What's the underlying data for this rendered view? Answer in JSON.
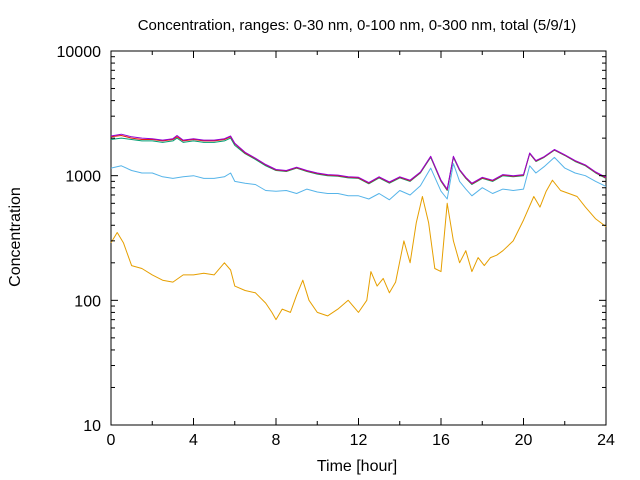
{
  "chart_data": {
    "type": "line",
    "title": "Concentration, ranges: 0-30 nm, 0-100 nm, 0-300 nm, total (5/9/1)",
    "xlabel": "Time [hour]",
    "ylabel": "Concentration",
    "xlim": [
      0,
      24
    ],
    "ylim": [
      10,
      10000
    ],
    "yscale": "log",
    "grid": false,
    "x_ticks": [
      0,
      4,
      8,
      12,
      16,
      20,
      24
    ],
    "x_tick_labels": [
      "0",
      "4",
      "8",
      "12",
      "16",
      "20",
      "24"
    ],
    "y_ticks": [
      10,
      100,
      1000,
      10000
    ],
    "y_tick_labels": [
      "10",
      "100",
      "1000",
      "10000"
    ],
    "series": [
      {
        "color": "#e69f00",
        "x": [
          0,
          0.3,
          0.6,
          1,
          1.5,
          2,
          2.5,
          3,
          3.5,
          4,
          4.5,
          5,
          5.5,
          5.8,
          6,
          6.5,
          7,
          7.5,
          7.8,
          8,
          8.3,
          8.7,
          9,
          9.3,
          9.6,
          10,
          10.5,
          11,
          11.5,
          12,
          12.4,
          12.6,
          12.9,
          13.2,
          13.5,
          13.8,
          14.2,
          14.5,
          14.8,
          15.1,
          15.4,
          15.7,
          16,
          16.3,
          16.6,
          16.9,
          17.2,
          17.5,
          17.8,
          18.1,
          18.4,
          18.7,
          19,
          19.5,
          20,
          20.5,
          20.8,
          21.1,
          21.4,
          21.8,
          22.2,
          22.6,
          23,
          23.5,
          24
        ],
        "y": [
          290,
          350,
          290,
          190,
          180,
          160,
          145,
          140,
          160,
          160,
          165,
          160,
          200,
          175,
          130,
          120,
          115,
          95,
          80,
          70,
          85,
          80,
          110,
          145,
          100,
          80,
          75,
          85,
          100,
          80,
          100,
          170,
          130,
          150,
          115,
          140,
          300,
          200,
          420,
          680,
          420,
          180,
          170,
          600,
          300,
          200,
          250,
          170,
          220,
          190,
          220,
          230,
          250,
          300,
          440,
          680,
          560,
          750,
          920,
          760,
          720,
          680,
          560,
          450,
          390
        ]
      },
      {
        "color": "#56b4e9",
        "x": [
          0,
          0.5,
          1,
          1.5,
          2,
          2.5,
          3,
          3.5,
          4,
          4.5,
          5,
          5.5,
          5.8,
          6,
          6.5,
          7,
          7.5,
          8,
          8.5,
          9,
          9.5,
          10,
          10.5,
          11,
          11.5,
          12,
          12.5,
          13,
          13.5,
          14,
          14.5,
          15,
          15.5,
          16,
          16.3,
          16.6,
          16.9,
          17.2,
          17.5,
          18,
          18.5,
          19,
          19.5,
          20,
          20.3,
          20.6,
          21,
          21.5,
          22,
          22.5,
          23,
          23.5,
          24
        ],
        "y": [
          1150,
          1200,
          1100,
          1050,
          1050,
          980,
          950,
          980,
          1000,
          950,
          950,
          980,
          1050,
          900,
          870,
          850,
          760,
          750,
          760,
          720,
          780,
          740,
          720,
          720,
          690,
          690,
          650,
          720,
          640,
          760,
          700,
          830,
          1150,
          750,
          650,
          1250,
          900,
          780,
          690,
          800,
          720,
          780,
          760,
          780,
          1200,
          1050,
          1180,
          1400,
          1150,
          1050,
          1000,
          900,
          820
        ]
      },
      {
        "color": "#009e73",
        "x": [
          0,
          0.5,
          1,
          1.5,
          2,
          2.5,
          3,
          3.2,
          3.5,
          4,
          4.5,
          5,
          5.5,
          5.8,
          6,
          6.5,
          7,
          7.5,
          8,
          8.5,
          9,
          9.5,
          10,
          10.5,
          11,
          11.5,
          12,
          12.5,
          13,
          13.5,
          14,
          14.5,
          15,
          15.5,
          16,
          16.3,
          16.6,
          16.9,
          17.2,
          17.5,
          18,
          18.5,
          19,
          19.5,
          20,
          20.3,
          20.6,
          21,
          21.5,
          22,
          22.5,
          23,
          23.5,
          24
        ],
        "y": [
          1950,
          2000,
          1950,
          1900,
          1900,
          1850,
          1900,
          2000,
          1850,
          1900,
          1850,
          1850,
          1900,
          2000,
          1750,
          1500,
          1350,
          1200,
          1100,
          1080,
          1150,
          1080,
          1030,
          1000,
          990,
          960,
          950,
          860,
          960,
          870,
          960,
          900,
          1050,
          1400,
          900,
          760,
          1400,
          1100,
          950,
          850,
          950,
          900,
          1000,
          980,
          1000,
          1500,
          1300,
          1400,
          1600,
          1450,
          1300,
          1200,
          1050,
          950
        ]
      },
      {
        "color": "#e51e10",
        "x": [
          0,
          0.5,
          1,
          1.5,
          2,
          2.5,
          3,
          3.2,
          3.5,
          4,
          4.5,
          5,
          5.5,
          5.8,
          6,
          6.5,
          7,
          7.5,
          8,
          8.5,
          9,
          9.5,
          10,
          10.5,
          11,
          11.5,
          12,
          12.5,
          13,
          13.5,
          14,
          14.5,
          15,
          15.5,
          16,
          16.3,
          16.6,
          16.9,
          17.2,
          17.5,
          18,
          18.5,
          19,
          19.5,
          20,
          20.3,
          20.6,
          21,
          21.5,
          22,
          22.5,
          23,
          23.5,
          24
        ],
        "y": [
          2050,
          2100,
          2000,
          1950,
          1950,
          1900,
          1950,
          2050,
          1900,
          1950,
          1900,
          1900,
          1950,
          2050,
          1800,
          1520,
          1370,
          1220,
          1110,
          1090,
          1160,
          1090,
          1040,
          1010,
          1000,
          970,
          960,
          870,
          970,
          880,
          970,
          910,
          1060,
          1420,
          910,
          770,
          1420,
          1110,
          960,
          860,
          960,
          910,
          1010,
          990,
          1010,
          1510,
          1310,
          1410,
          1610,
          1460,
          1310,
          1210,
          1060,
          960
        ]
      },
      {
        "color": "#9400d3",
        "x": [
          0,
          0.5,
          1,
          1.5,
          2,
          2.5,
          3,
          3.2,
          3.5,
          4,
          4.5,
          5,
          5.5,
          5.8,
          6,
          6.5,
          7,
          7.5,
          8,
          8.5,
          9,
          9.5,
          10,
          10.5,
          11,
          11.5,
          12,
          12.5,
          13,
          13.5,
          14,
          14.5,
          15,
          15.5,
          16,
          16.3,
          16.6,
          16.9,
          17.2,
          17.5,
          18,
          18.5,
          19,
          19.5,
          20,
          20.3,
          20.6,
          21,
          21.5,
          22,
          22.5,
          23,
          23.5,
          24
        ],
        "y": [
          2080,
          2150,
          2050,
          2000,
          1980,
          1930,
          1980,
          2100,
          1930,
          1980,
          1930,
          1930,
          1980,
          2080,
          1820,
          1540,
          1380,
          1230,
          1120,
          1100,
          1170,
          1100,
          1050,
          1020,
          1010,
          980,
          970,
          880,
          980,
          890,
          980,
          920,
          1070,
          1430,
          920,
          780,
          1430,
          1120,
          970,
          870,
          970,
          920,
          1020,
          1000,
          1020,
          1520,
          1320,
          1420,
          1620,
          1470,
          1320,
          1220,
          1070,
          970
        ]
      }
    ]
  }
}
